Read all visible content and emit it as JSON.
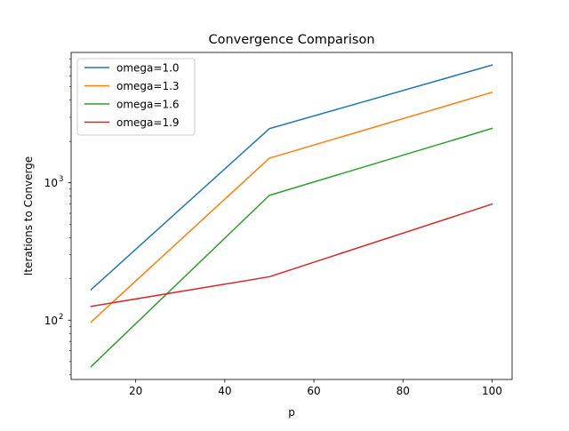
{
  "chart_data": {
    "type": "line",
    "title": "Convergence Comparison",
    "xlabel": "p",
    "ylabel": "Iterations to Converge",
    "yscale": "log",
    "xlim": [
      5.5,
      104.5
    ],
    "ylim": [
      37,
      8900
    ],
    "xticks": [
      20,
      40,
      60,
      80,
      100
    ],
    "yticks": [
      {
        "value": 100,
        "base": "10",
        "exponent": "2"
      },
      {
        "value": 1000,
        "base": "10",
        "exponent": "3"
      }
    ],
    "grid": false,
    "legend_position": "upper left",
    "x": [
      10,
      50,
      100
    ],
    "series": [
      {
        "name": "omega=1.0",
        "color": "#1f77b4",
        "values": [
          167,
          2480,
          7200
        ]
      },
      {
        "name": "omega=1.3",
        "color": "#ff7f0e",
        "values": [
          97,
          1510,
          4560
        ]
      },
      {
        "name": "omega=1.6",
        "color": "#2ca02c",
        "values": [
          46,
          810,
          2490
        ]
      },
      {
        "name": "omega=1.9",
        "color": "#d62728",
        "values": [
          126,
          207,
          700
        ]
      }
    ]
  }
}
